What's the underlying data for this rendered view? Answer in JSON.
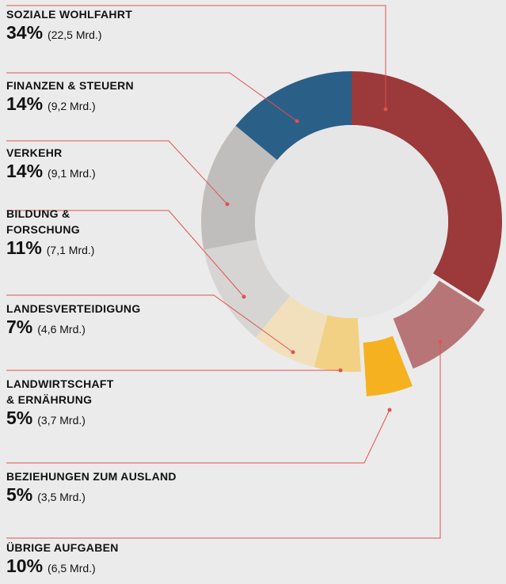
{
  "chart_data": {
    "type": "donut",
    "categories": [
      "SOZIALE WOHLFAHRT",
      "ÜBRIGE AUFGABEN",
      "BEZIEHUNGEN ZUM AUSLAND",
      "LANDWIRTSCHAFT\n& ERNÄHRUNG",
      "LANDESVERTEIDIGUNG",
      "BILDUNG &\nFORSCHUNG",
      "VERKEHR",
      "FINANZEN & STEUERN"
    ],
    "values": [
      34,
      10,
      5,
      5,
      7,
      11,
      14,
      14
    ],
    "value_labels": [
      "34%",
      "10%",
      "5%",
      "5%",
      "7%",
      "11%",
      "14%",
      "14%"
    ],
    "details": [
      "(22,5 Mrd.)",
      "(6,5 Mrd.)",
      "(3,5 Mrd.)",
      "(3,7 Mrd.)",
      "(4,6 Mrd.)",
      "(7,1 Mrd.)",
      "(9,1 Mrd.)",
      "(9,2 Mrd.)"
    ],
    "colors": [
      "#9b393b",
      "#b87577",
      "#f5b11f",
      "#f2d184",
      "#f1e0bb",
      "#d6d5d4",
      "#bfbebc",
      "#2a5f87"
    ]
  }
}
